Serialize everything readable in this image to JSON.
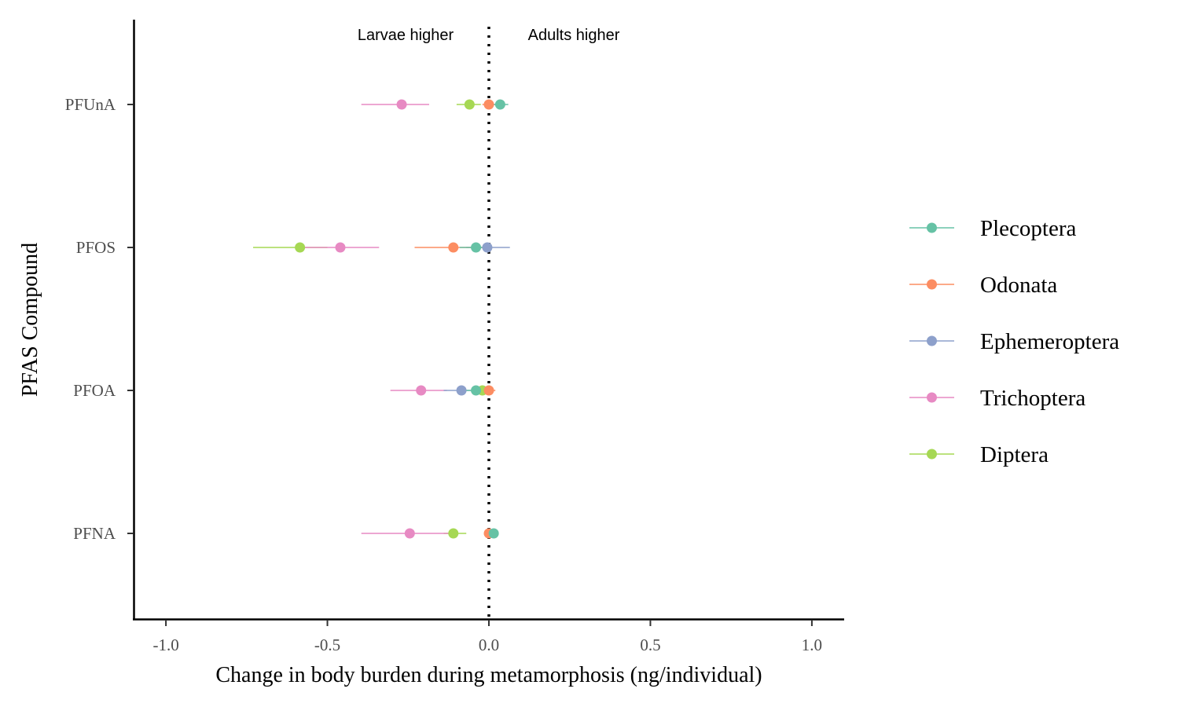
{
  "chart_data": {
    "type": "scatter",
    "title": "",
    "xlabel": "Change in body burden during metamorphosis (ng/individual)",
    "ylabel": "PFAS Compound",
    "xlim": [
      -1.1,
      1.1
    ],
    "x_ticks": [
      "-1.0",
      "-0.5",
      "0.0",
      "0.5",
      "1.0"
    ],
    "x_tick_values": [
      -1.0,
      -0.5,
      0.0,
      0.5,
      1.0
    ],
    "categories": [
      "PFUnA",
      "PFOS",
      "PFOA",
      "PFNA"
    ],
    "reference_line": {
      "x": 0,
      "style": "dotted",
      "color": "#000000"
    },
    "annotations": [
      {
        "text": "Larvae higher",
        "side": "left"
      },
      {
        "text": "Adults higher",
        "side": "right"
      }
    ],
    "legend_position": "right",
    "grid": false,
    "series": [
      {
        "name": "Plecoptera",
        "color": "#66c2a5",
        "points": [
          {
            "compound": "PFUnA",
            "x": 0.035,
            "lo": 0.015,
            "hi": 0.06
          },
          {
            "compound": "PFOS",
            "x": -0.04,
            "lo": -0.09,
            "hi": 0.01
          },
          {
            "compound": "PFOA",
            "x": -0.04,
            "lo": -0.07,
            "hi": -0.01
          },
          {
            "compound": "PFNA",
            "x": 0.015,
            "lo": 0.0,
            "hi": 0.03
          }
        ]
      },
      {
        "name": "Odonata",
        "color": "#fc8d62",
        "points": [
          {
            "compound": "PFUnA",
            "x": 0.0,
            "lo": -0.02,
            "hi": 0.02
          },
          {
            "compound": "PFOS",
            "x": -0.11,
            "lo": -0.23,
            "hi": 0.0
          },
          {
            "compound": "PFOA",
            "x": 0.0,
            "lo": -0.02,
            "hi": 0.02
          },
          {
            "compound": "PFNA",
            "x": 0.0,
            "lo": -0.01,
            "hi": 0.01
          }
        ]
      },
      {
        "name": "Ephemeroptera",
        "color": "#8da0cb",
        "points": [
          {
            "compound": "PFOS",
            "x": -0.005,
            "lo": -0.07,
            "hi": 0.065
          },
          {
            "compound": "PFOA",
            "x": -0.085,
            "lo": -0.14,
            "hi": -0.03
          }
        ]
      },
      {
        "name": "Trichoptera",
        "color": "#e78ac3",
        "points": [
          {
            "compound": "PFUnA",
            "x": -0.27,
            "lo": -0.395,
            "hi": -0.185
          },
          {
            "compound": "PFOS",
            "x": -0.46,
            "lo": -0.6,
            "hi": -0.34
          },
          {
            "compound": "PFOA",
            "x": -0.21,
            "lo": -0.305,
            "hi": -0.13
          },
          {
            "compound": "PFNA",
            "x": -0.245,
            "lo": -0.395,
            "hi": -0.12
          }
        ]
      },
      {
        "name": "Diptera",
        "color": "#a6d854",
        "points": [
          {
            "compound": "PFUnA",
            "x": -0.06,
            "lo": -0.1,
            "hi": -0.025
          },
          {
            "compound": "PFOS",
            "x": -0.585,
            "lo": -0.73,
            "hi": -0.5
          },
          {
            "compound": "PFOA",
            "x": -0.02,
            "lo": -0.04,
            "hi": 0.0
          },
          {
            "compound": "PFNA",
            "x": -0.11,
            "lo": -0.14,
            "hi": -0.07
          }
        ]
      }
    ]
  }
}
